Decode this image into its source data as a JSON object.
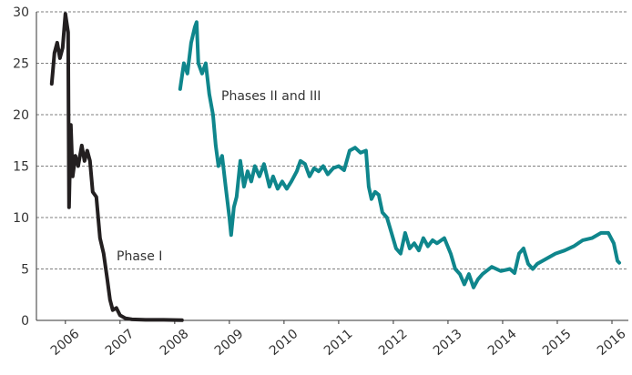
{
  "chart_data": {
    "type": "line",
    "xlim": [
      2005.47,
      2016.3
    ],
    "xticks": [
      2006,
      2007,
      2008,
      2009,
      2010,
      2011,
      2012,
      2013,
      2014,
      2015,
      2016
    ],
    "ylim": [
      0,
      30
    ],
    "yticks": [
      0,
      5,
      10,
      15,
      20,
      25,
      30
    ],
    "grid": true,
    "series": [
      {
        "name": "Phase I",
        "color": "#231f20",
        "x": [
          2005.75,
          2005.8,
          2005.85,
          2005.9,
          2005.95,
          2006.0,
          2006.05,
          2006.067,
          2006.1,
          2006.133,
          2006.183,
          2006.233,
          2006.3,
          2006.35,
          2006.4,
          2006.45,
          2006.5,
          2006.567,
          2006.633,
          2006.7,
          2006.767,
          2006.817,
          2006.867,
          2006.933,
          2007.0,
          2007.1,
          2007.217,
          2007.467,
          2007.8,
          2008.133
        ],
        "values": [
          23,
          26,
          27,
          25.5,
          26.5,
          29.8,
          28,
          11,
          19,
          14,
          16,
          15,
          17,
          15.5,
          16.5,
          15.5,
          12.5,
          12,
          8,
          6.5,
          4,
          2,
          1,
          1.2,
          0.5,
          0.2,
          0.1,
          0.05,
          0.05,
          0.02
        ]
      },
      {
        "name": "Phases II and III",
        "color": "#0f868c",
        "x": [
          2008.1,
          2008.167,
          2008.233,
          2008.3,
          2008.367,
          2008.4,
          2008.433,
          2008.5,
          2008.567,
          2008.633,
          2008.7,
          2008.75,
          2008.8,
          2008.867,
          2008.933,
          2009.0,
          2009.033,
          2009.083,
          2009.133,
          2009.2,
          2009.267,
          2009.333,
          2009.4,
          2009.467,
          2009.55,
          2009.633,
          2009.733,
          2009.8,
          2009.883,
          2009.967,
          2010.05,
          2010.133,
          2010.233,
          2010.3,
          2010.383,
          2010.467,
          2010.55,
          2010.633,
          2010.717,
          2010.8,
          2010.9,
          2011.0,
          2011.1,
          2011.2,
          2011.3,
          2011.4,
          2011.5,
          2011.55,
          2011.6,
          2011.667,
          2011.733,
          2011.8,
          2011.883,
          2011.967,
          2012.05,
          2012.133,
          2012.217,
          2012.3,
          2012.383,
          2012.467,
          2012.55,
          2012.633,
          2012.717,
          2012.8,
          2012.933,
          2013.05,
          2013.133,
          2013.217,
          2013.3,
          2013.383,
          2013.467,
          2013.55,
          2013.633,
          2013.8,
          2013.967,
          2014.133,
          2014.217,
          2014.3,
          2014.383,
          2014.467,
          2014.55,
          2014.633,
          2014.8,
          2014.967,
          2015.133,
          2015.3,
          2015.467,
          2015.633,
          2015.8,
          2015.933,
          2016.033,
          2016.1,
          2016.133
        ],
        "values": [
          22.5,
          25,
          24,
          27,
          28.5,
          29,
          25,
          24,
          25,
          22,
          20,
          17,
          15,
          16,
          13,
          10,
          8.3,
          11,
          12,
          15.5,
          13,
          14.5,
          13.5,
          15,
          14,
          15.2,
          13,
          14,
          12.8,
          13.5,
          12.8,
          13.5,
          14.5,
          15.5,
          15.2,
          14,
          14.8,
          14.5,
          15,
          14.2,
          14.8,
          15,
          14.6,
          16.5,
          16.8,
          16.3,
          16.5,
          13,
          11.8,
          12.5,
          12.2,
          10.5,
          10,
          8.5,
          7,
          6.5,
          8.5,
          7,
          7.5,
          6.8,
          8,
          7.2,
          7.8,
          7.5,
          8,
          6.5,
          5,
          4.5,
          3.5,
          4.5,
          3.2,
          4,
          4.5,
          5.2,
          4.8,
          5,
          4.6,
          6.5,
          7,
          5.5,
          5,
          5.5,
          6,
          6.5,
          6.8,
          7.2,
          7.8,
          8,
          8.5,
          8.5,
          7.5,
          5.8,
          5.6
        ]
      }
    ]
  }
}
